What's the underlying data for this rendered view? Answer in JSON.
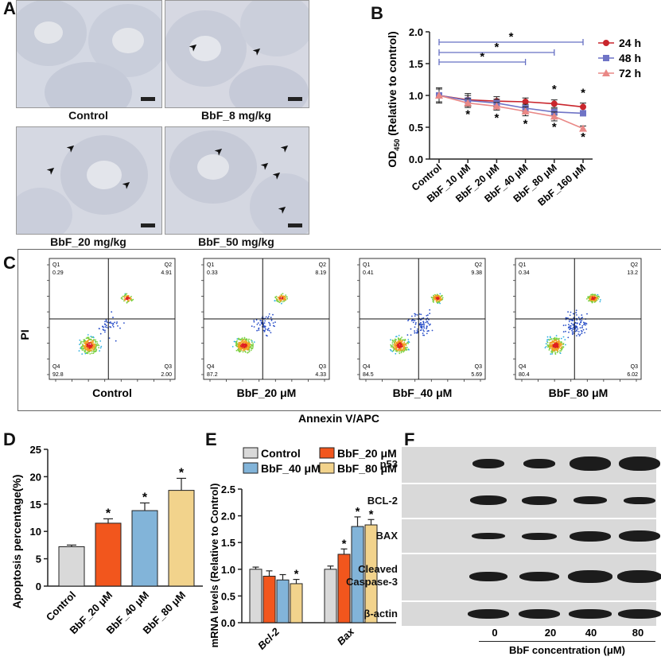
{
  "panels": {
    "A": "A",
    "B": "B",
    "C": "C",
    "D": "D",
    "E": "E",
    "F": "F"
  },
  "histology": {
    "captions": [
      "Control",
      "BbF_8 mg/kg",
      "BbF_20 mg/kg",
      "BbF_50 mg/kg"
    ]
  },
  "chart_data": [
    {
      "id": "B",
      "type": "line",
      "categories": [
        "Control",
        "BbF_10 μM",
        "BbF_20 μM",
        "BbF_40 μM",
        "BbF_80 μM",
        "BbF_160 μM"
      ],
      "ylabel": "OD",
      "ylabel_sub": "450",
      "ylabel_suffix": " (Relative to control)",
      "ylim": [
        0.0,
        2.0
      ],
      "yticks": [
        "0.0",
        "0.5",
        "1.0",
        "1.5",
        "2.0"
      ],
      "series": [
        {
          "name": "24 h",
          "color": "#c9252c",
          "marker": "circle",
          "values": [
            1.0,
            0.93,
            0.91,
            0.9,
            0.87,
            0.82
          ],
          "err": [
            0.12,
            0.1,
            0.07,
            0.06,
            0.06,
            0.06
          ]
        },
        {
          "name": "48 h",
          "color": "#6f74c6",
          "marker": "square",
          "values": [
            1.0,
            0.92,
            0.88,
            0.8,
            0.74,
            0.72
          ],
          "err": [
            0.1,
            0.08,
            0.06,
            0.06,
            0.05,
            0.04
          ]
        },
        {
          "name": "72 h",
          "color": "#e98886",
          "marker": "triangle",
          "values": [
            1.0,
            0.88,
            0.83,
            0.75,
            0.67,
            0.48
          ],
          "err": [
            0.1,
            0.07,
            0.06,
            0.07,
            0.07,
            0.04
          ]
        }
      ],
      "stars": "*",
      "brackets": 3
    },
    {
      "id": "C",
      "type": "scatter",
      "xlabel": "Annexin V/APC",
      "ylabel": "PI",
      "plots": [
        {
          "label": "Control",
          "q1": "0.29",
          "q2": "4.91",
          "q3": "2.00",
          "q4": "92.8"
        },
        {
          "label": "BbF_20 μM",
          "q1": "0.33",
          "q2": "8.19",
          "q3": "4.33",
          "q4": "87.2"
        },
        {
          "label": "BbF_40 μM",
          "q1": "0.41",
          "q2": "9.38",
          "q3": "5.69",
          "q4": "84.5"
        },
        {
          "label": "BbF_80 μM",
          "q1": "0.34",
          "q2": "13.2",
          "q3": "6.02",
          "q4": "80.4"
        }
      ],
      "quadrant_names": [
        "Q1",
        "Q2",
        "Q3",
        "Q4"
      ]
    },
    {
      "id": "D",
      "type": "bar",
      "categories": [
        "Control",
        "BbF_20 μM",
        "BbF_40 μM",
        "BbF_80 μM"
      ],
      "values": [
        7.2,
        11.5,
        13.8,
        17.5
      ],
      "err": [
        0.3,
        0.8,
        1.4,
        2.2
      ],
      "colors": [
        "#d9d9d9",
        "#f2561d",
        "#82b4d9",
        "#f2d38c"
      ],
      "stars": [
        "",
        "*",
        "*",
        "*"
      ],
      "ylabel": "Apoptosis percentage(%)",
      "ylim": [
        0,
        25
      ],
      "yticks": [
        "0",
        "5",
        "10",
        "15",
        "20",
        "25"
      ]
    },
    {
      "id": "E",
      "type": "bar",
      "groups": [
        "Bcl-2",
        "Bax"
      ],
      "ylabel": "mRNA levels (Relative to Control)",
      "ylim": [
        0.0,
        2.5
      ],
      "yticks": [
        "0.0",
        "0.5",
        "1.0",
        "1.5",
        "2.0",
        "2.5"
      ],
      "series": [
        {
          "name": "Control",
          "color": "#d9d9d9",
          "values": [
            1.0,
            1.0
          ],
          "err": [
            0.04,
            0.06
          ],
          "stars": [
            "",
            ""
          ]
        },
        {
          "name": "BbF_20 μM",
          "color": "#f2561d",
          "values": [
            0.87,
            1.28
          ],
          "err": [
            0.1,
            0.1
          ],
          "stars": [
            "",
            "*"
          ]
        },
        {
          "name": "BbF_40 μM",
          "color": "#82b4d9",
          "values": [
            0.8,
            1.8
          ],
          "err": [
            0.1,
            0.18
          ],
          "stars": [
            "",
            "*"
          ]
        },
        {
          "name": "BbF_80 μM",
          "color": "#f2d38c",
          "values": [
            0.73,
            1.83
          ],
          "err": [
            0.08,
            0.1
          ],
          "stars": [
            "*",
            "*"
          ]
        }
      ]
    }
  ],
  "blot": {
    "rows": [
      "p53",
      "BCL-2",
      "BAX",
      "Cleaved Caspase-3",
      "β-actin"
    ],
    "lanes": [
      "0",
      "20",
      "40",
      "80"
    ],
    "xlabel": "BbF concentration (μM)"
  }
}
